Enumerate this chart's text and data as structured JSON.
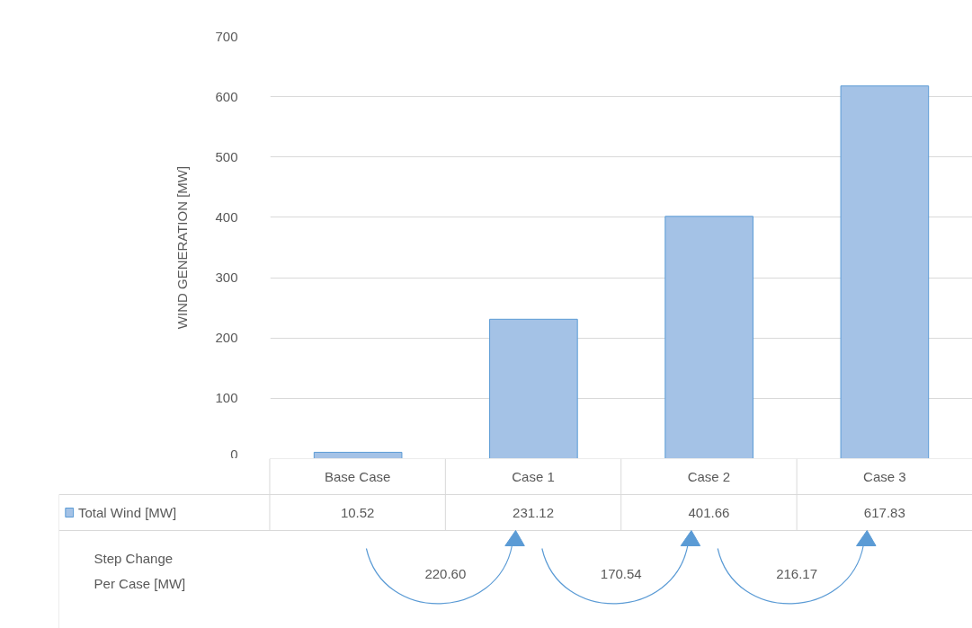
{
  "chart_data": {
    "type": "bar",
    "ylabel": "WIND GENERATION [MW]",
    "categories": [
      "Base Case",
      "Case 1",
      "Case 2",
      "Case 3"
    ],
    "series": [
      {
        "name": "Total Wind [MW]",
        "color": "#a4c2e6",
        "values": [
          10.52,
          231.12,
          401.66,
          617.83
        ]
      }
    ],
    "ylim": [
      0,
      700
    ],
    "yticks": [
      0,
      100,
      200,
      300,
      400,
      500,
      600,
      700
    ],
    "grid": "y",
    "data_labels": true,
    "annotations": [
      "Step Change\nPer Case [MW]",
      "220.60",
      "170.54",
      "216.17"
    ]
  }
}
